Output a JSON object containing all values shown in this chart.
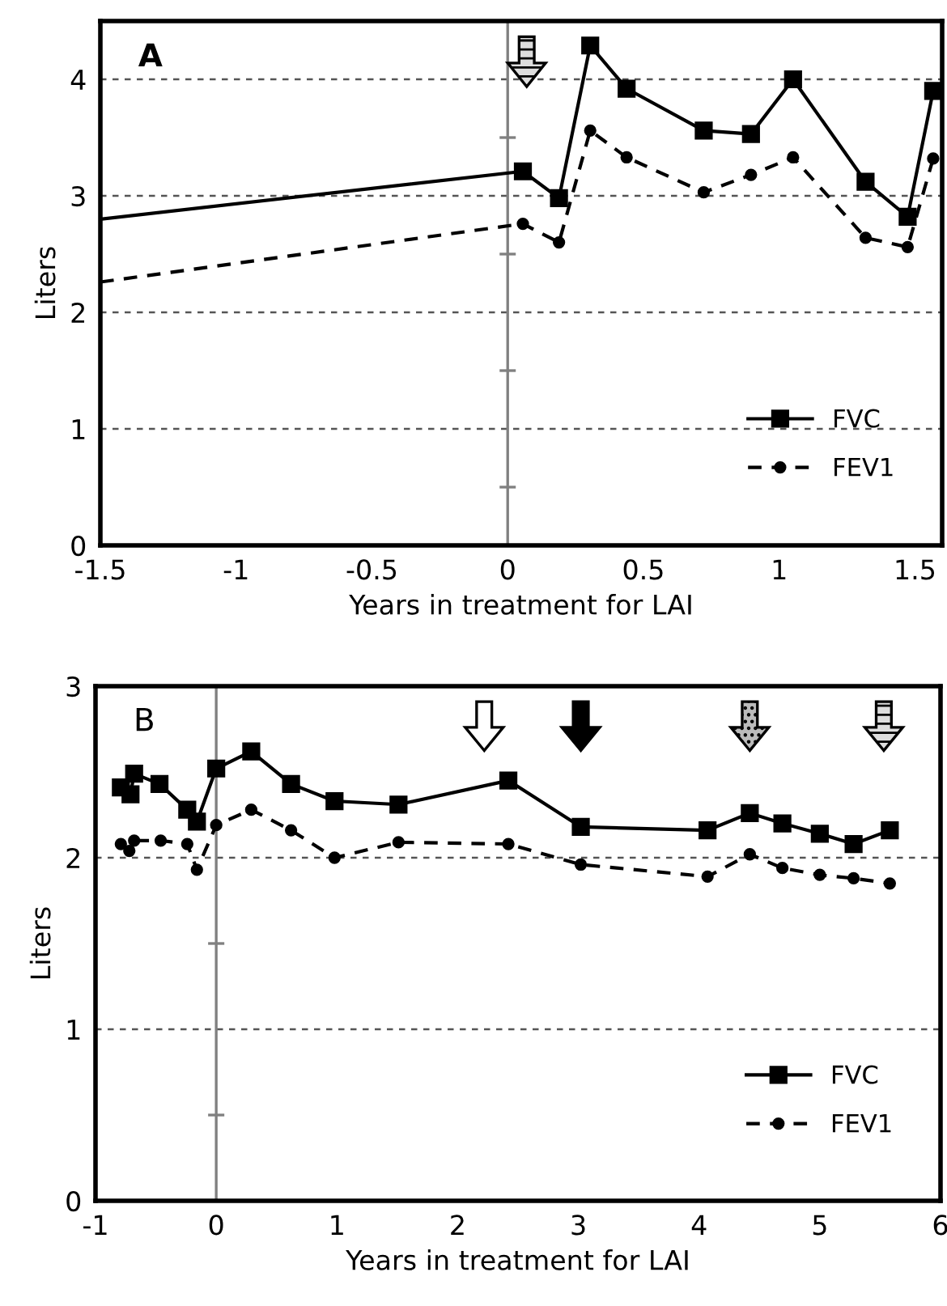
{
  "chart_data": [
    {
      "type": "line",
      "xlabel": "Years in treatment for LAI",
      "ylabel": "Liters",
      "annotations": [
        "A"
      ],
      "xlim": [
        -1.5,
        1.6
      ],
      "xticks": [
        -1.5,
        -1,
        -0.5,
        0,
        0.5,
        1,
        1.5
      ],
      "ylim": [
        0,
        4.5
      ],
      "yticks": [
        0,
        1,
        2,
        3,
        4
      ],
      "grid": "y",
      "legend": "bottom right",
      "ref_lines": [
        {
          "axis": "x",
          "value": 0,
          "color": "#808080"
        }
      ],
      "series": [
        {
          "name": "FVC",
          "color": "#000000",
          "marker": "square",
          "line_style": "solid",
          "x": [
            -1.5,
            0.056,
            0.189,
            0.304,
            0.438,
            0.722,
            0.896,
            1.051,
            1.318,
            1.473,
            1.567
          ],
          "values": [
            2.8,
            3.21,
            2.98,
            4.29,
            3.92,
            3.56,
            3.53,
            4.0,
            3.12,
            2.82,
            3.9
          ]
        },
        {
          "name": "FEV1",
          "color": "#000000",
          "marker": "circle",
          "line_style": "dashed",
          "x": [
            -1.5,
            0.056,
            0.189,
            0.304,
            0.438,
            0.722,
            0.896,
            1.051,
            1.318,
            1.473,
            1.567
          ],
          "values": [
            2.26,
            2.76,
            2.6,
            3.56,
            3.33,
            3.03,
            3.18,
            3.33,
            2.64,
            2.56,
            3.32
          ]
        }
      ]
    },
    {
      "type": "line",
      "xlabel": "Years in treatment for LAI",
      "ylabel": "Liters",
      "annotations": [
        "B"
      ],
      "xlim": [
        -1,
        6
      ],
      "xticks": [
        -1,
        0,
        1,
        2,
        3,
        4,
        5,
        6
      ],
      "ylim": [
        0,
        3
      ],
      "yticks": [
        0,
        1,
        2,
        3
      ],
      "grid": "y",
      "legend": "bottom right",
      "ref_lines": [
        {
          "axis": "x",
          "value": 0,
          "color": "#808080"
        }
      ],
      "series": [
        {
          "name": "FVC",
          "color": "#000000",
          "marker": "square",
          "line_style": "solid",
          "x": [
            -0.79,
            -0.71,
            -0.68,
            -0.47,
            -0.24,
            -0.16,
            0.0,
            0.29,
            0.62,
            0.98,
            1.51,
            2.42,
            3.02,
            4.07,
            4.42,
            4.69,
            5.0,
            5.28,
            5.58
          ],
          "values": [
            2.41,
            2.37,
            2.49,
            2.43,
            2.28,
            2.21,
            2.52,
            2.62,
            2.43,
            2.33,
            2.31,
            2.45,
            2.18,
            2.16,
            2.26,
            2.2,
            2.14,
            2.08,
            2.16
          ]
        },
        {
          "name": "FEV1",
          "color": "#000000",
          "marker": "circle",
          "line_style": "dashed",
          "x": [
            -0.79,
            -0.72,
            -0.68,
            -0.46,
            -0.24,
            -0.16,
            0.0,
            0.29,
            0.62,
            0.98,
            1.51,
            2.42,
            3.02,
            4.07,
            4.42,
            4.69,
            5.0,
            5.28,
            5.58
          ],
          "values": [
            2.08,
            2.04,
            2.1,
            2.1,
            2.08,
            1.93,
            2.19,
            2.28,
            2.16,
            2.0,
            2.09,
            2.08,
            1.96,
            1.89,
            2.02,
            1.94,
            1.9,
            1.88,
            1.85
          ]
        }
      ]
    }
  ]
}
